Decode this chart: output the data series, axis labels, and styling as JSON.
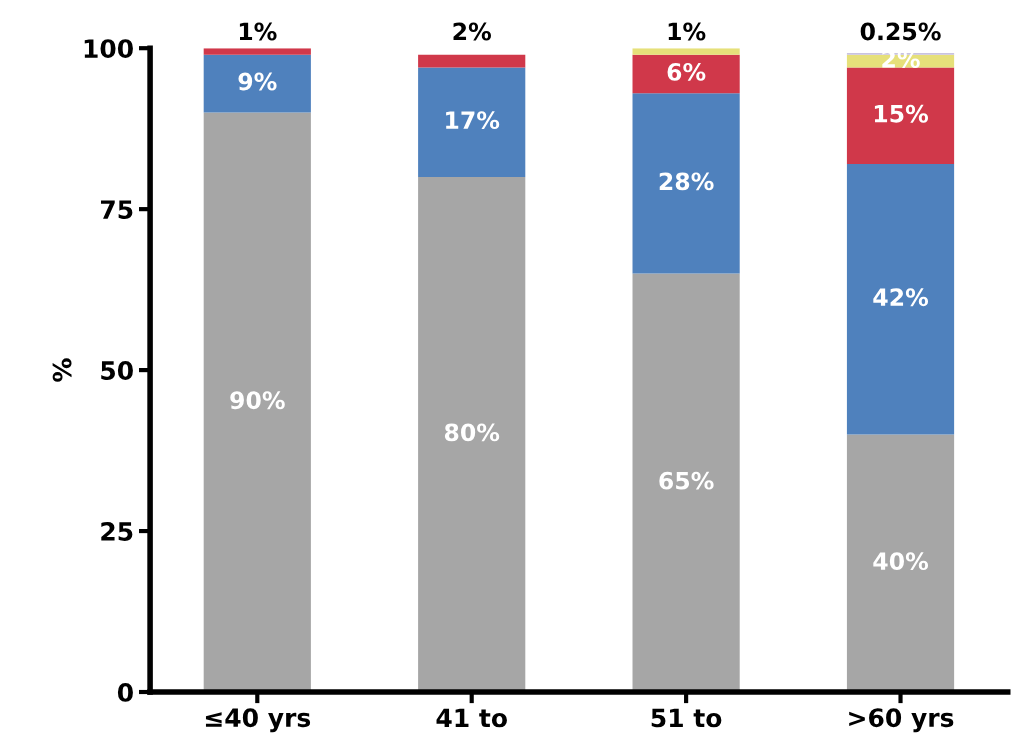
{
  "chart_data": {
    "type": "bar",
    "stacked": true,
    "ylabel": "%",
    "categories": [
      "≤40 yrs",
      "41 to",
      "51 to",
      ">60 yrs"
    ],
    "ylim": [
      0,
      100
    ],
    "yticks": [
      0,
      25,
      50,
      75,
      100
    ],
    "grid": false,
    "series": [
      {
        "color": "#a6a6a6",
        "values": [
          90,
          80,
          65,
          40
        ],
        "value_labels": [
          "90%",
          "80%",
          "65%",
          "40%"
        ]
      },
      {
        "color": "#4f81bd",
        "values": [
          9,
          17,
          28,
          42
        ],
        "value_labels": [
          "9%",
          "17%",
          "28%",
          "42%"
        ]
      },
      {
        "color": "#d0384a",
        "values": [
          1,
          2,
          6,
          15
        ],
        "value_labels": [
          "1%",
          "2%",
          "6%",
          "15%"
        ]
      },
      {
        "color": "#e6e07a",
        "values": [
          null,
          null,
          1,
          2
        ],
        "value_labels": [
          null,
          null,
          "1%",
          "2%"
        ]
      },
      {
        "color": "#c9c3e0",
        "values": [
          null,
          null,
          null,
          0.25
        ],
        "value_labels": [
          null,
          null,
          null,
          "0.25%"
        ]
      }
    ]
  }
}
